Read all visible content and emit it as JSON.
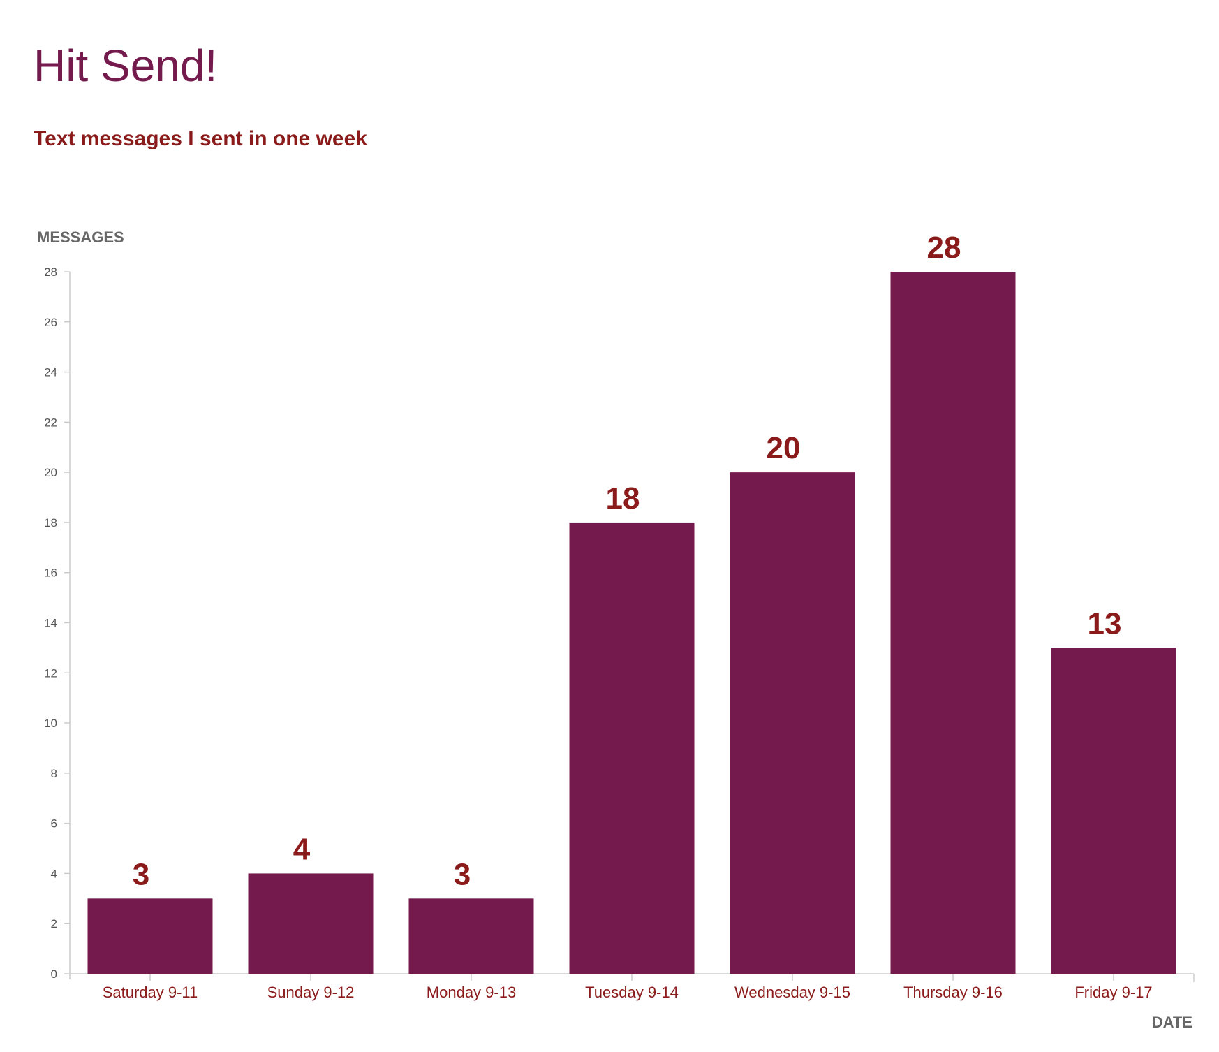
{
  "header": {
    "title": "Hit Send!",
    "subtitle": "Text messages I sent in one week"
  },
  "colors": {
    "title": "#741a4d",
    "subtitle": "#8b1a1a",
    "bar": "#741a4d",
    "data_label": "#8b1a1a",
    "x_tick_label": "#8b1a1a",
    "y_tick_label": "#555555",
    "axis_title": "#666666",
    "axis_line": "#cccccc"
  },
  "chart_data": {
    "type": "bar",
    "title": "Hit Send!",
    "subtitle": "Text messages I sent in one week",
    "xlabel": "DATE",
    "ylabel": "MESSAGES",
    "categories": [
      "Saturday 9-11",
      "Sunday 9-12",
      "Monday 9-13",
      "Tuesday 9-14",
      "Wednesday 9-15",
      "Thursday 9-16",
      "Friday 9-17"
    ],
    "values": [
      3,
      4,
      3,
      18,
      20,
      28,
      13
    ],
    "ylim": [
      0,
      28
    ],
    "yticks": [
      0,
      2,
      4,
      6,
      8,
      10,
      12,
      14,
      16,
      18,
      20,
      22,
      24,
      26,
      28
    ],
    "grid": false,
    "legend": "none",
    "data_labels": true
  }
}
